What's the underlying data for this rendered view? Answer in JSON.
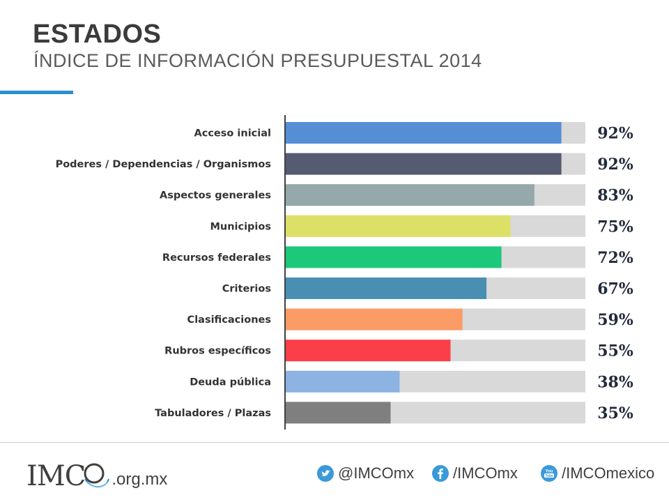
{
  "header": {
    "title": "ESTADOS",
    "subtitle": "ÍNDICE DE INFORMACIÓN PRESUPUESTAL 2014"
  },
  "chart_data": {
    "type": "bar",
    "orientation": "horizontal",
    "categories": [
      "Acceso inicial",
      "Poderes / Dependencias / Organismos",
      "Aspectos generales",
      "Municipios",
      "Recursos federales",
      "Criterios",
      "Clasificaciones",
      "Rubros específicos",
      "Deuda pública",
      "Tabuladores / Plazas"
    ],
    "values": [
      92,
      92,
      83,
      75,
      72,
      67,
      59,
      55,
      38,
      35
    ],
    "value_labels": [
      "92%",
      "92%",
      "83%",
      "75%",
      "72%",
      "67%",
      "59%",
      "55%",
      "38%",
      "35%"
    ],
    "xlim": [
      0,
      100
    ],
    "colors": [
      "#558ed5",
      "#555b70",
      "#95a8aa",
      "#dde066",
      "#1cc97a",
      "#4a8fb1",
      "#fb9b66",
      "#fa3f48",
      "#8db3e2",
      "#7f7f7f"
    ],
    "track_color": "#d9d9d9",
    "grid": false,
    "legend": "none"
  },
  "footer": {
    "logo_text": "IMC",
    "logo_domain": ".org.mx",
    "twitter": "@IMCOmx",
    "facebook": "/IMCOmx",
    "youtube": "/IMCOmexico",
    "youtube_badge": "You\nTube",
    "colors": {
      "accent": "#2a8fd0",
      "icon_bg": "#3a9ad9"
    },
    "icons": [
      "twitter-icon",
      "facebook-icon",
      "youtube-icon"
    ]
  }
}
